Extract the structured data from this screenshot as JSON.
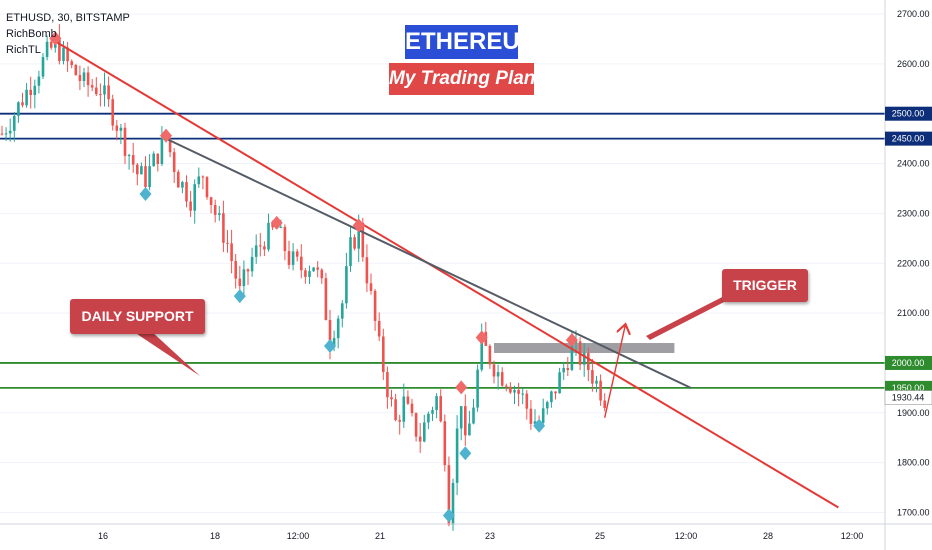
{
  "header": {
    "symbol": "ETHUSD, 30, BITSTAMP",
    "indicator_1": "RichBomb",
    "indicator_2": "RichTL"
  },
  "banners": {
    "title": "ETHEREUM",
    "subtitle": "My Trading Plan",
    "daily_support": "DAILY SUPPORT",
    "trigger": "TRIGGER"
  },
  "colors": {
    "title_bg": "#2a4fd6",
    "subtitle_bg": "#e04848",
    "callout_bg": "#c8424a",
    "up": "#26a69a",
    "down": "#ef5350",
    "resistance": "#0d2f7a",
    "support": "#2e8b2e",
    "trendline_red": "#e53935",
    "trendline_gray": "#555c66",
    "zone": "#8e8e93",
    "marker_red": "#f06a6a",
    "marker_blue": "#4fb3cf"
  },
  "chart_data": {
    "type": "candlestick",
    "symbol": "ETHUSD",
    "timeframe": "30",
    "exchange": "BITSTAMP",
    "ylim": [
      1690,
      2750
    ],
    "y_ticks": [
      2700,
      2600,
      2500,
      2400,
      2300,
      2200,
      2100,
      2000,
      1900,
      1800,
      1700
    ],
    "x_tick_labels": [
      "16",
      "18",
      "12:00",
      "21",
      "23",
      "25",
      "12:00",
      "28",
      "12:00"
    ],
    "last_price": "1930.44",
    "horizontal_levels": [
      {
        "price": 2500,
        "label": "2500.00",
        "role": "resistance"
      },
      {
        "price": 2450,
        "label": "2450.00",
        "role": "resistance"
      },
      {
        "price": 2000,
        "label": "2000.00",
        "role": "support"
      },
      {
        "price": 1950,
        "label": "1950.00",
        "role": "support"
      }
    ],
    "path": [
      [
        0,
        2460
      ],
      [
        3,
        2500
      ],
      [
        7,
        2560
      ],
      [
        11,
        2620
      ],
      [
        13,
        2640
      ],
      [
        16,
        2600
      ],
      [
        20,
        2560
      ],
      [
        24,
        2550
      ],
      [
        27,
        2500
      ],
      [
        30,
        2440
      ],
      [
        33,
        2380
      ],
      [
        35,
        2370
      ],
      [
        38,
        2420
      ],
      [
        40,
        2450
      ],
      [
        43,
        2370
      ],
      [
        46,
        2330
      ],
      [
        49,
        2380
      ],
      [
        52,
        2300
      ],
      [
        55,
        2240
      ],
      [
        58,
        2140
      ],
      [
        61,
        2210
      ],
      [
        64,
        2250
      ],
      [
        67,
        2270
      ],
      [
        70,
        2210
      ],
      [
        73,
        2190
      ],
      [
        76,
        2200
      ],
      [
        78,
        2150
      ],
      [
        80,
        2050
      ],
      [
        83,
        2120
      ],
      [
        85,
        2230
      ],
      [
        87,
        2270
      ],
      [
        90,
        2130
      ],
      [
        92,
        2030
      ],
      [
        94,
        1950
      ],
      [
        96,
        1880
      ],
      [
        98,
        1920
      ],
      [
        100,
        1880
      ],
      [
        102,
        1850
      ],
      [
        104,
        1900
      ],
      [
        106,
        1930
      ],
      [
        108,
        1820
      ],
      [
        109,
        1700
      ],
      [
        110,
        1780
      ],
      [
        111,
        1860
      ],
      [
        112,
        1930
      ],
      [
        113,
        1830
      ],
      [
        115,
        1920
      ],
      [
        117,
        2040
      ],
      [
        119,
        2010
      ],
      [
        121,
        1980
      ],
      [
        123,
        1970
      ],
      [
        125,
        1950
      ],
      [
        127,
        1930
      ],
      [
        129,
        1890
      ],
      [
        131,
        1880
      ],
      [
        133,
        1910
      ],
      [
        135,
        1950
      ],
      [
        137,
        1990
      ],
      [
        139,
        2030
      ],
      [
        141,
        2010
      ],
      [
        143,
        1990
      ],
      [
        145,
        1960
      ],
      [
        147,
        1930
      ]
    ],
    "pivot_highs": [
      [
        13,
        2645
      ],
      [
        40,
        2450
      ],
      [
        67,
        2275
      ],
      [
        87,
        2270
      ],
      [
        112,
        1945
      ],
      [
        117,
        2045
      ],
      [
        139,
        2040
      ]
    ],
    "pivot_lows": [
      [
        35,
        2345
      ],
      [
        58,
        2140
      ],
      [
        80,
        2040
      ],
      [
        109,
        1700
      ],
      [
        113,
        1825
      ],
      [
        131,
        1880
      ]
    ],
    "trendlines": [
      {
        "name": "red",
        "from": [
          13,
          2645
        ],
        "to": [
          204,
          1710
        ]
      },
      {
        "name": "gray",
        "from": [
          40,
          2450
        ],
        "to": [
          168,
          1950
        ]
      }
    ],
    "zone": {
      "x0": 120,
      "x1": 164,
      "y0": 2020,
      "y1": 2040
    },
    "projection_arrow": {
      "from": [
        147,
        1890
      ],
      "to": [
        152,
        2075
      ]
    }
  }
}
